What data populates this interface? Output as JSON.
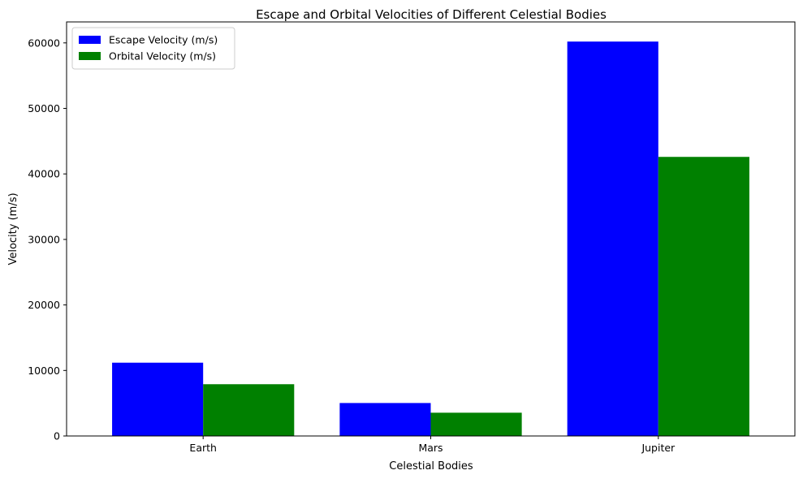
{
  "chart_data": {
    "type": "bar",
    "title": "Escape and Orbital Velocities of Different Celestial Bodies",
    "xlabel": "Celestial Bodies",
    "ylabel": "Velocity (m/s)",
    "categories": [
      "Earth",
      "Mars",
      "Jupiter"
    ],
    "series": [
      {
        "name": "Escape Velocity (m/s)",
        "color": "#0000ff",
        "values": [
          11186,
          5030,
          60200
        ]
      },
      {
        "name": "Orbital Velocity (m/s)",
        "color": "#008000",
        "values": [
          7900,
          3550,
          42600
        ]
      }
    ],
    "ylim": [
      0,
      63200
    ],
    "yticks": [
      0,
      10000,
      20000,
      30000,
      40000,
      50000,
      60000
    ],
    "grid": false,
    "legend": "top-left"
  }
}
